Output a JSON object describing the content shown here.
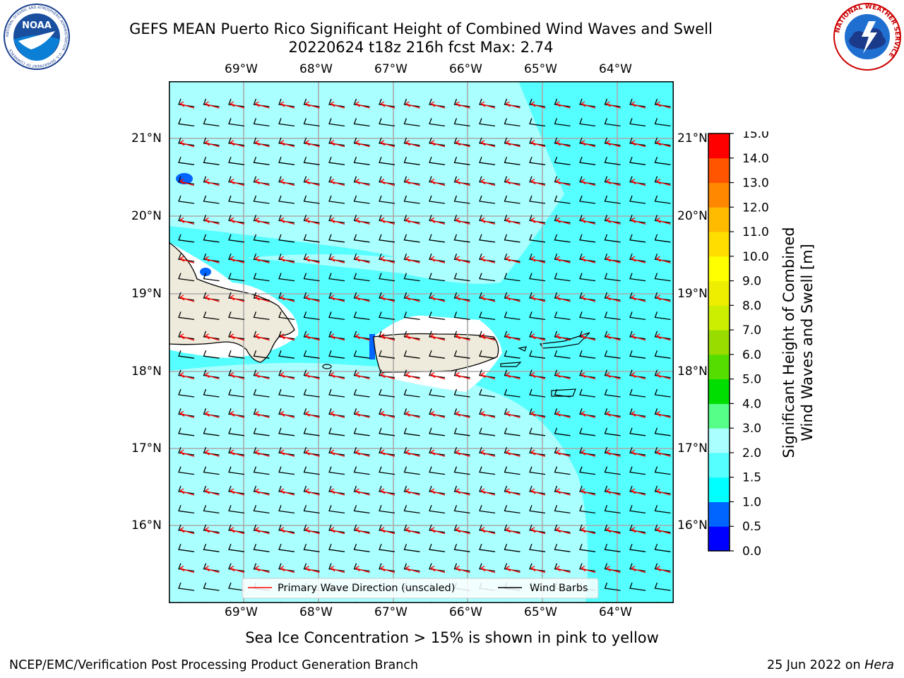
{
  "header": {
    "title_line1": "GEFS MEAN Puerto Rico Significant Height of Combined Wind Waves and Swell",
    "title_line2": "20220624 t18z 216h fcst   Max: 2.74"
  },
  "logos": {
    "left": {
      "name": "noaa-logo",
      "text": "NOAA",
      "ring_text": "NATIONAL OCEANIC AND ATMOSPHERIC ADMINISTRATION · U.S. DEPARTMENT OF COMMERCE"
    },
    "right": {
      "name": "nws-logo",
      "ring_text": "NATIONAL WEATHER SERVICE"
    }
  },
  "map": {
    "lon_labels": [
      "69°W",
      "68°W",
      "67°W",
      "66°W",
      "65°W",
      "64°W"
    ],
    "lat_labels": [
      "21°N",
      "20°N",
      "19°N",
      "18°N",
      "17°N",
      "16°N"
    ],
    "legend": {
      "wave_direction": "Primary Wave Direction (unscaled)",
      "wind_barbs": "Wind Barbs"
    }
  },
  "colorbar": {
    "label_line1": "Significant Height of Combined",
    "label_line2": "Wind Waves and Swell [m]",
    "ticks": [
      "0.0",
      "0.5",
      "1.0",
      "1.5",
      "2.0",
      "3.0",
      "4.0",
      "5.0",
      "6.0",
      "7.0",
      "8.0",
      "9.0",
      "10.0",
      "11.0",
      "12.0",
      "13.0",
      "14.0",
      "15.0"
    ],
    "colors": [
      "#0000ff",
      "#0064ff",
      "#00ffff",
      "#55ffff",
      "#aaffff",
      "#55ff88",
      "#00dd00",
      "#55dd00",
      "#99dd00",
      "#ccee00",
      "#eeee00",
      "#ffff00",
      "#ffdd00",
      "#ffbb00",
      "#ff8800",
      "#ff5500",
      "#ff0000"
    ]
  },
  "caption": "Sea Ice Concentration > 15% is shown in pink to yellow",
  "footer": {
    "left": "NCEP/EMC/Verification Post Processing Product Generation Branch",
    "right_date": "25 Jun 2022 on ",
    "right_machine": "Hera"
  },
  "colors": {
    "wave_arrow": "#ff0000",
    "barb": "#000000",
    "land": "#efebdc",
    "grid": "#aaaaaa",
    "sea_1_5_to_2": "#55ffff",
    "sea_2_to_3": "#aaffff"
  }
}
